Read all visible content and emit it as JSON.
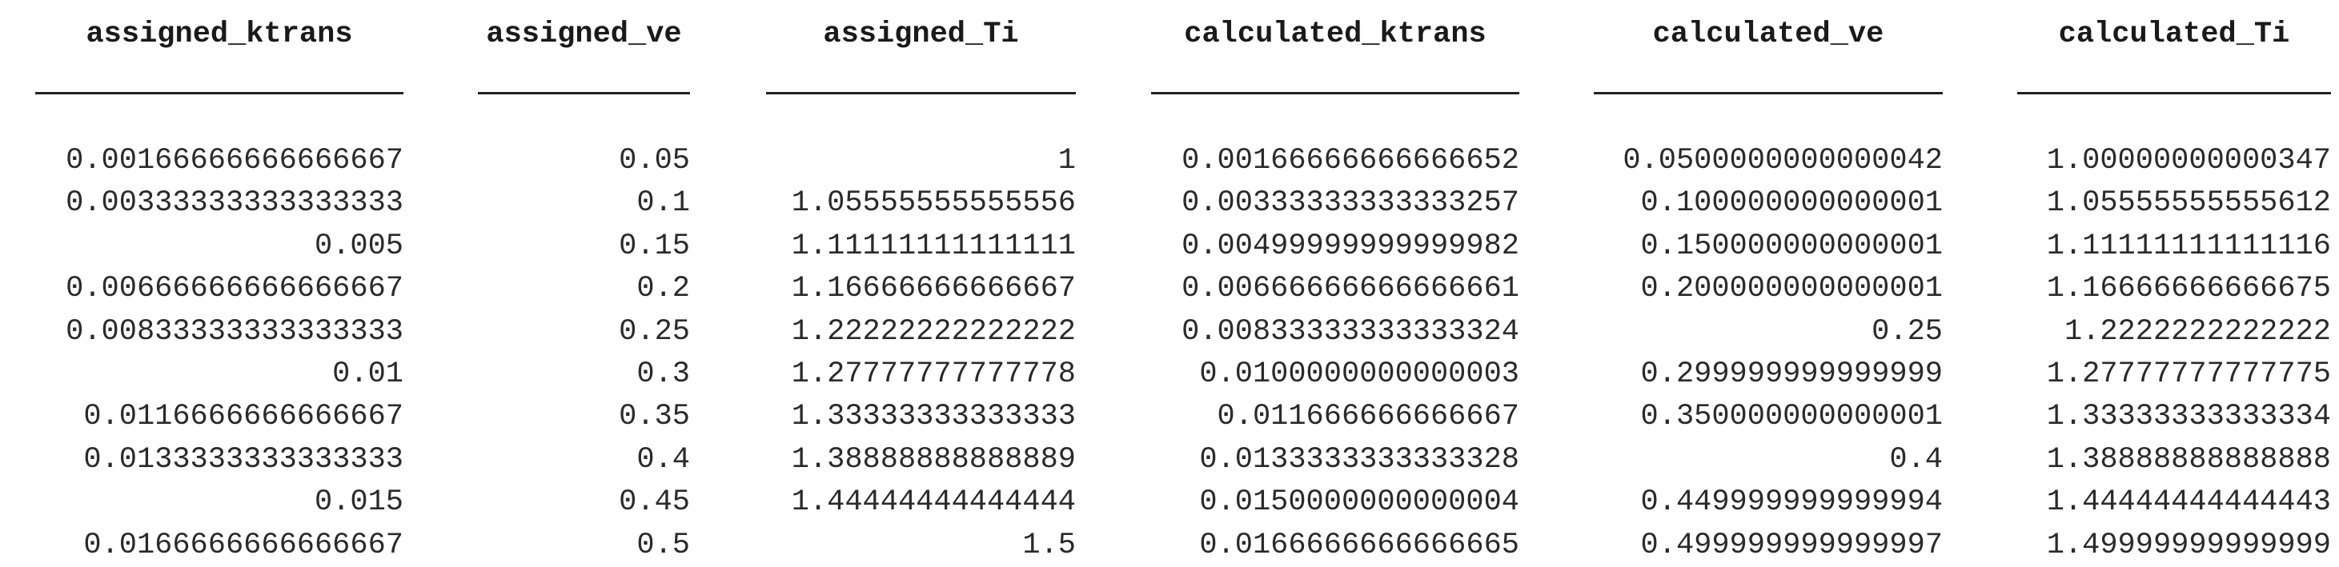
{
  "table": {
    "columns": [
      "assigned_ktrans",
      "assigned_ve",
      "assigned_Ti",
      "calculated_ktrans",
      "calculated_ve",
      "calculated_Ti"
    ],
    "rows": [
      [
        "0.00166666666666667",
        "0.05",
        "1",
        "0.00166666666666652",
        "0.0500000000000042",
        "1.00000000000347"
      ],
      [
        "0.00333333333333333",
        "0.1",
        "1.05555555555556",
        "0.00333333333333257",
        "0.100000000000001",
        "1.05555555555612"
      ],
      [
        "0.005",
        "0.15",
        "1.11111111111111",
        "0.00499999999999982",
        "0.150000000000001",
        "1.11111111111116"
      ],
      [
        "0.00666666666666667",
        "0.2",
        "1.16666666666667",
        "0.00666666666666661",
        "0.200000000000001",
        "1.16666666666675"
      ],
      [
        "0.00833333333333333",
        "0.25",
        "1.22222222222222",
        "0.00833333333333324",
        "0.25",
        "1.2222222222222"
      ],
      [
        "0.01",
        "0.3",
        "1.27777777777778",
        "0.0100000000000003",
        "0.299999999999999",
        "1.27777777777775"
      ],
      [
        "0.0116666666666667",
        "0.35",
        "1.33333333333333",
        "0.011666666666667",
        "0.350000000000001",
        "1.33333333333334"
      ],
      [
        "0.0133333333333333",
        "0.4",
        "1.38888888888889",
        "0.0133333333333328",
        "0.4",
        "1.38888888888888"
      ],
      [
        "0.015",
        "0.45",
        "1.44444444444444",
        "0.0150000000000004",
        "0.449999999999994",
        "1.44444444444443"
      ],
      [
        "0.0166666666666667",
        "0.5",
        "1.5",
        "0.0166666666666665",
        "0.499999999999997",
        "1.49999999999999"
      ]
    ]
  }
}
